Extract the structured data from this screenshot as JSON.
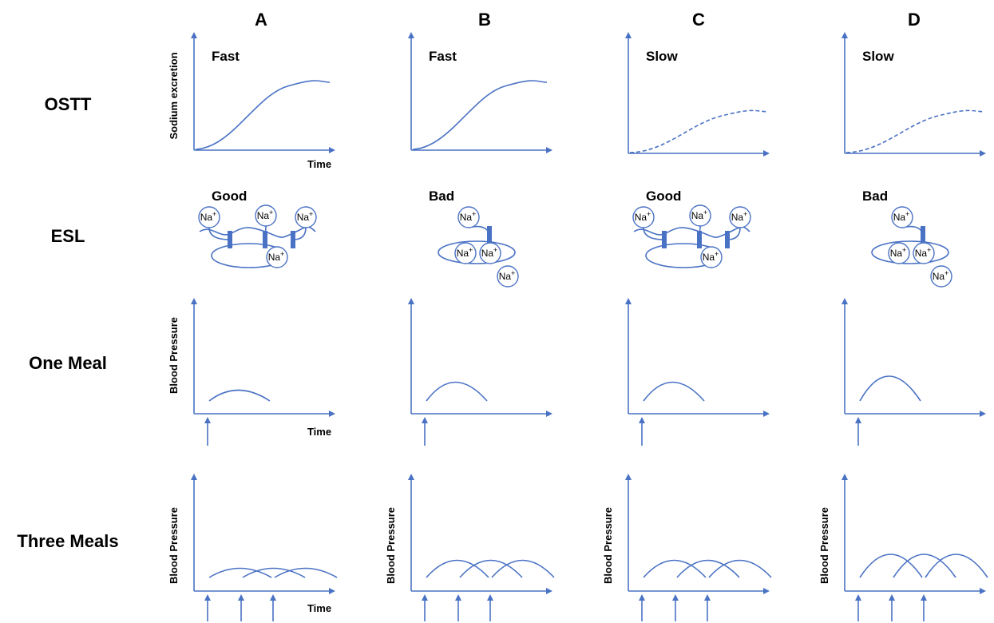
{
  "columns": [
    "A",
    "B",
    "C",
    "D"
  ],
  "rows": [
    "OSTT",
    "ESL",
    "One Meal",
    "Three Meals"
  ],
  "ostt": {
    "y_label": "Sodium excretion",
    "x_label": "Time",
    "speeds": [
      "Fast",
      "Fast",
      "Slow",
      "Slow"
    ]
  },
  "esl": {
    "states": [
      "Good",
      "Bad",
      "Good",
      "Bad"
    ],
    "ion": {
      "symbol": "Na",
      "charge": "+"
    }
  },
  "one_meal": {
    "y_label": "Blood Pressure",
    "x_label": "Time"
  },
  "three_meals": {
    "y_label": "Blood Pressure",
    "x_label": "Time"
  }
}
